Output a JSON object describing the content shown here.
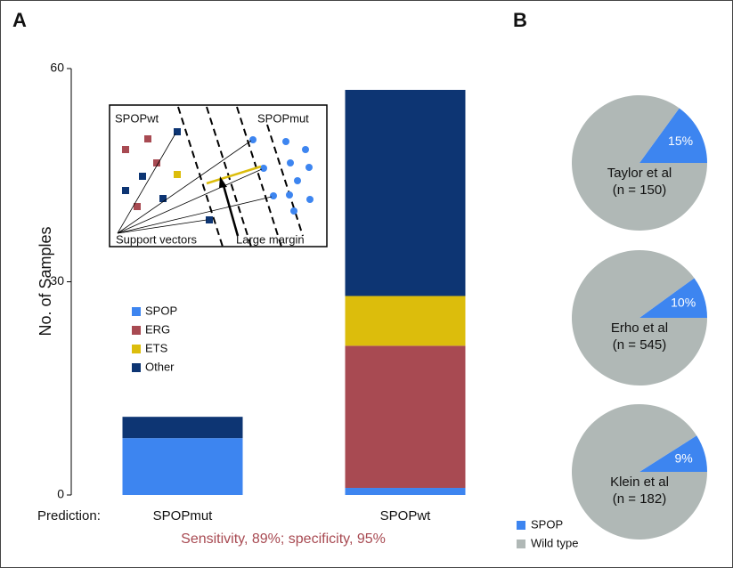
{
  "panels": [
    "A",
    "B"
  ],
  "chart_data": [
    {
      "type": "stacked_bar",
      "y_label": "No. of Samples",
      "x_label": "Prediction:",
      "footnote": "Sensitivity, 89%; specificity, 95%",
      "categories": [
        "SPOPmut",
        "SPOPwt"
      ],
      "series": [
        {
          "name": "SPOP",
          "color": "#3d85f0",
          "values": [
            8,
            1
          ]
        },
        {
          "name": "ERG",
          "color": "#a84a52",
          "values": [
            0,
            20
          ]
        },
        {
          "name": "ETS",
          "color": "#dcbd0c",
          "values": [
            0,
            7
          ]
        },
        {
          "name": "Other",
          "color": "#0d3573",
          "values": [
            3,
            29
          ]
        }
      ],
      "ylim": [
        0,
        60
      ],
      "yticks": [
        0,
        30,
        60
      ],
      "inset": {
        "left_label": "SPOPwt",
        "right_label": "SPOPmut",
        "bottom_left": "Support vectors",
        "bottom_right": "Large margin"
      }
    },
    {
      "type": "pie",
      "title": [
        "Taylor et al",
        "(n = 150)"
      ],
      "values": [
        15,
        85
      ],
      "value_labels": [
        "15%",
        null
      ],
      "colors": [
        "#3d85f0",
        "#b0b8b6"
      ]
    },
    {
      "type": "pie",
      "title": [
        "Erho et al",
        "(n = 545)"
      ],
      "values": [
        10,
        90
      ],
      "value_labels": [
        "10%",
        null
      ],
      "colors": [
        "#3d85f0",
        "#b0b8b6"
      ]
    },
    {
      "type": "pie",
      "title": [
        "Klein et al",
        "(n = 182)"
      ],
      "values": [
        9,
        91
      ],
      "value_labels": [
        "9%",
        null
      ],
      "colors": [
        "#3d85f0",
        "#b0b8b6"
      ]
    }
  ],
  "pie_legend": {
    "labels": [
      "SPOP",
      "Wild type"
    ],
    "colors": [
      "#3d85f0",
      "#b0b8b6"
    ]
  }
}
